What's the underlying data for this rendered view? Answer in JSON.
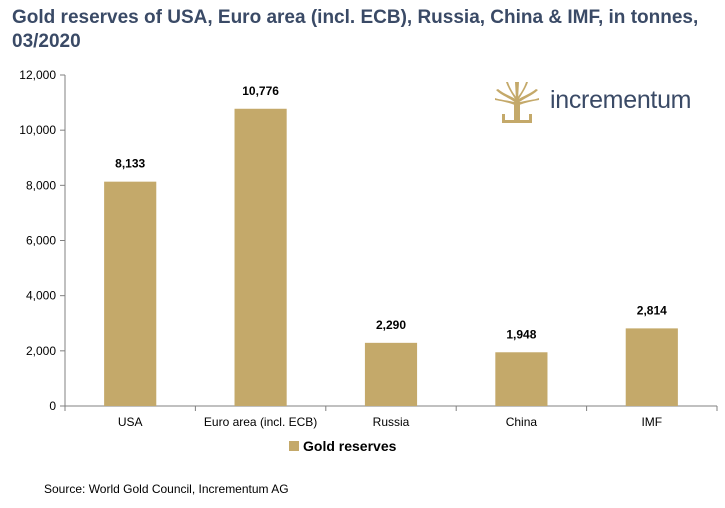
{
  "title": "Gold reserves of USA, Euro area (incl. ECB), Russia, China & IMF, in tonnes, 03/2020",
  "logo": {
    "text": "incrementum",
    "icon": "tree-icon"
  },
  "source": "Source: World Gold Council, Incrementum AG",
  "colors": {
    "bar": "#c4a96a",
    "title": "#3a4a66",
    "axis": "#808080"
  },
  "chart_data": {
    "type": "bar",
    "title": "Gold reserves of USA, Euro area (incl. ECB), Russia, China & IMF, in tonnes, 03/2020",
    "xlabel": "",
    "ylabel": "",
    "categories": [
      "USA",
      "Euro area (incl. ECB)",
      "Russia",
      "China",
      "IMF"
    ],
    "series": [
      {
        "name": "Gold reserves",
        "values": [
          8133,
          10776,
          2290,
          1948,
          2814
        ]
      }
    ],
    "data_labels": [
      "8,133",
      "10,776",
      "2,290",
      "1,948",
      "2,814"
    ],
    "yticks": [
      "0",
      "2,000",
      "4,000",
      "6,000",
      "8,000",
      "10,000",
      "12,000"
    ],
    "ylim": [
      0,
      12000
    ],
    "grid": false,
    "legend": "bottom"
  }
}
